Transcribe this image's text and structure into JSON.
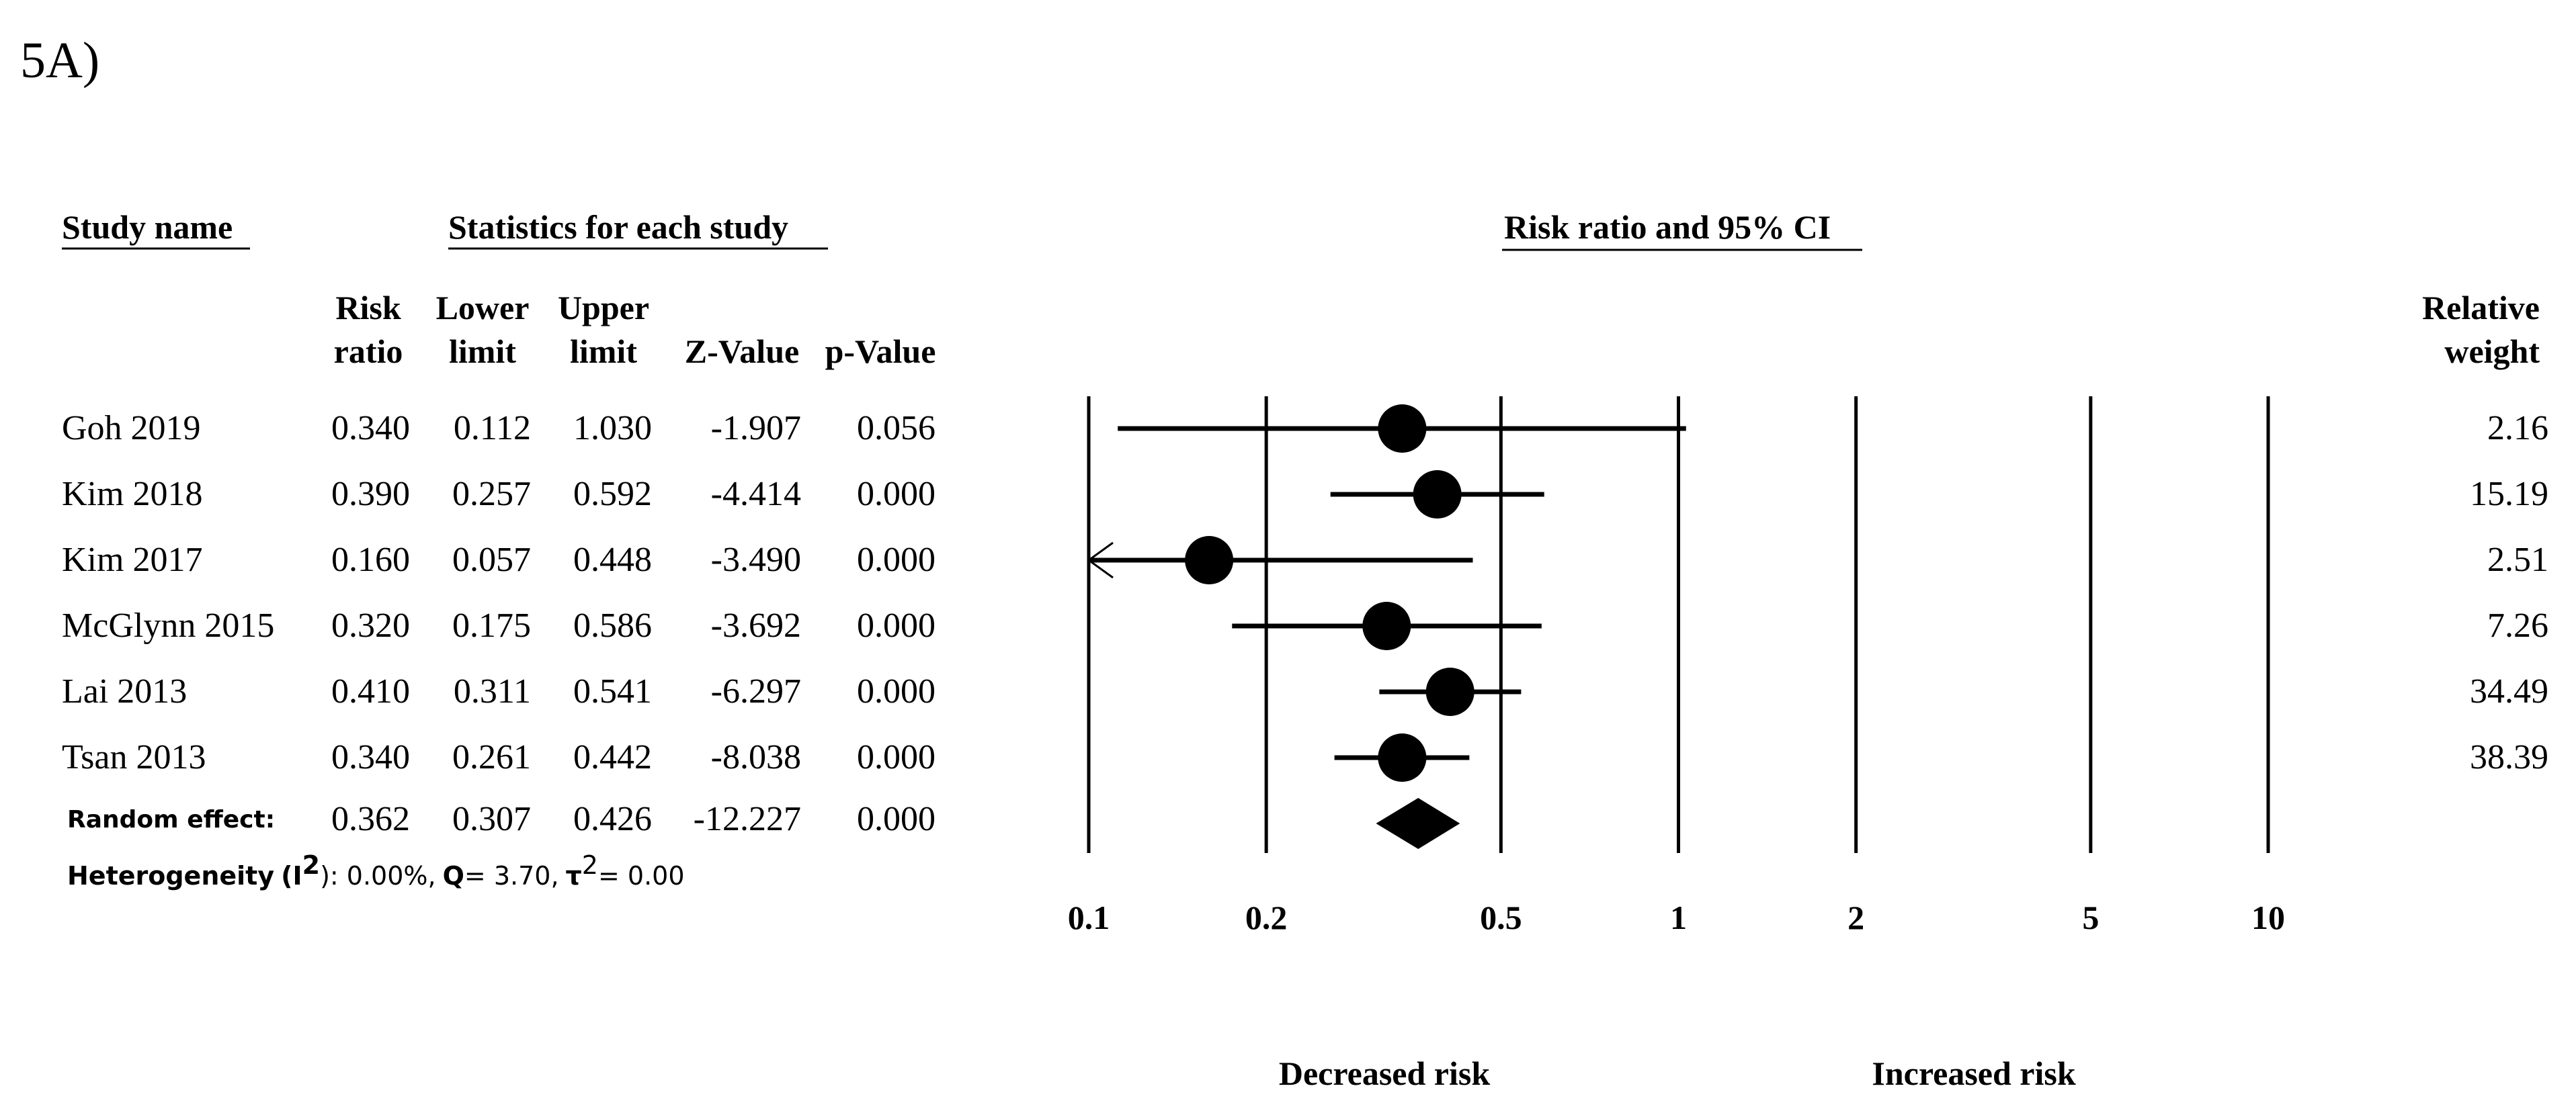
{
  "panel_label": "5A)",
  "headers": {
    "study_name": "Study name",
    "statistics": "Statistics for each study",
    "plot_title": "Risk ratio and 95% CI",
    "risk_ratio": [
      "Risk",
      "ratio"
    ],
    "lower_limit": [
      "Lower",
      "limit"
    ],
    "upper_limit": [
      "Upper",
      "limit"
    ],
    "z_value": "Z-Value",
    "p_value": "p-Value",
    "relative_weight": [
      "Relative",
      "weight"
    ]
  },
  "pooled_label": "Random effect:",
  "heterogeneity": {
    "label": "Heterogeneity",
    "i2_symbol": "I",
    "i2_sup": "2",
    "i2_close": "): 0.00%,",
    "q_symbol": "Q",
    "q_value": "= 3.70,",
    "tau_symbol": "τ",
    "tau_sup": "2",
    "tau_value": "= 0.00"
  },
  "axis_notes": {
    "left": "Decreased risk",
    "right": "Increased risk"
  },
  "chart_data": {
    "type": "forest",
    "x_scale": "log",
    "xlim": [
      0.1,
      10
    ],
    "x_ticks": [
      {
        "value": 0.1,
        "label": "0.1"
      },
      {
        "value": 0.2,
        "label": "0.2"
      },
      {
        "value": 0.5,
        "label": "0.5"
      },
      {
        "value": 1,
        "label": "1"
      },
      {
        "value": 2,
        "label": "2"
      },
      {
        "value": 5,
        "label": "5"
      },
      {
        "value": 10,
        "label": "10"
      }
    ],
    "studies": [
      {
        "name": "Goh 2019",
        "rr": "0.340",
        "lower": "0.112",
        "upper": "1.030",
        "z": "-1.907",
        "p": "0.056",
        "weight": "2.16"
      },
      {
        "name": "Kim 2018",
        "rr": "0.390",
        "lower": "0.257",
        "upper": "0.592",
        "z": "-4.414",
        "p": "0.000",
        "weight": "15.19"
      },
      {
        "name": "Kim 2017",
        "rr": "0.160",
        "lower": "0.057",
        "upper": "0.448",
        "z": "-3.490",
        "p": "0.000",
        "weight": "2.51"
      },
      {
        "name": "McGlynn 2015",
        "rr": "0.320",
        "lower": "0.175",
        "upper": "0.586",
        "z": "-3.692",
        "p": "0.000",
        "weight": "7.26"
      },
      {
        "name": "Lai 2013",
        "rr": "0.410",
        "lower": "0.311",
        "upper": "0.541",
        "z": "-6.297",
        "p": "0.000",
        "weight": "34.49"
      },
      {
        "name": "Tsan 2013",
        "rr": "0.340",
        "lower": "0.261",
        "upper": "0.442",
        "z": "-8.038",
        "p": "0.000",
        "weight": "38.39"
      }
    ],
    "pooled": {
      "rr": "0.362",
      "lower": "0.307",
      "upper": "0.426",
      "z": "-12.227",
      "p": "0.000"
    }
  }
}
